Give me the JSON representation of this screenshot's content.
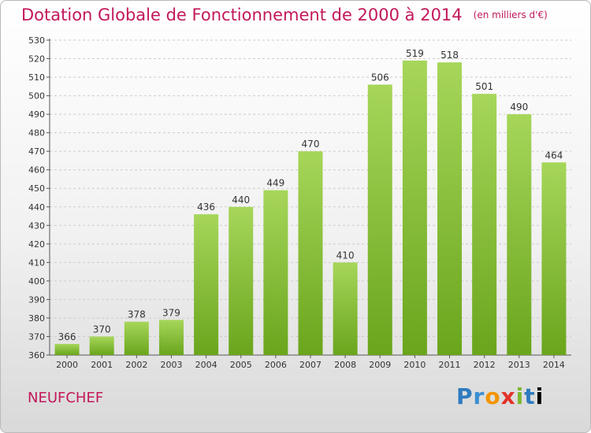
{
  "title": "Dotation Globale de Fonctionnement de 2000 à 2014",
  "title_unit": "(en milliers d'€)",
  "commune": "NEUFCHEF",
  "logo_text": "Proxiti",
  "colors": {
    "bar_light": "#a6d65a",
    "bar_dark": "#6aa51c",
    "title": "#c2185b",
    "grid": "#cccccc"
  },
  "chart_data": {
    "type": "bar",
    "categories": [
      "2000",
      "2001",
      "2002",
      "2003",
      "2004",
      "2005",
      "2006",
      "2007",
      "2008",
      "2009",
      "2010",
      "2011",
      "2012",
      "2013",
      "2014"
    ],
    "values": [
      366,
      370,
      378,
      379,
      436,
      440,
      449,
      470,
      410,
      506,
      519,
      518,
      501,
      490,
      464
    ],
    "ylim": [
      360,
      530
    ],
    "yticks": [
      360,
      370,
      380,
      390,
      400,
      410,
      420,
      430,
      440,
      450,
      460,
      470,
      480,
      490,
      500,
      510,
      520,
      530
    ],
    "grid": true,
    "data_labels": true
  }
}
